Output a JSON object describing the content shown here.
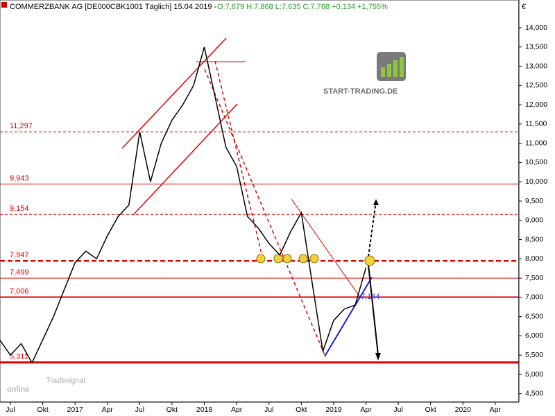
{
  "chart_data": {
    "type": "line",
    "title": "COMMERZBANK AG [DE000CBK1001  Täglich] 15.04.2019 -",
    "ohlc": "O:7,679 H:7,868 L:7,635 C:7,768 +0,134 +1,755%",
    "currency": "€",
    "logo": "START-TRADING.DE",
    "watermark_small": "Tradesignal",
    "watermark": "online",
    "annotation": "7,144",
    "categories": [
      null,
      "Jul",
      null,
      null,
      "Okt",
      null,
      null,
      "2017",
      null,
      null,
      "Apr",
      null,
      null,
      "Jul",
      null,
      null,
      "Okt",
      null,
      null,
      "2018",
      null,
      null,
      "Apr",
      null,
      null,
      "Jul",
      null,
      null,
      "Okt",
      null,
      null,
      "2019",
      null,
      null,
      "Apr",
      null,
      null,
      "Jul",
      null,
      null,
      "Okt",
      null,
      null,
      "2020",
      null,
      null,
      "Apr",
      null
    ],
    "series": [
      {
        "name": "COMMERZBANK AG",
        "color": "#000000",
        "values": [
          5.9,
          5.5,
          5.8,
          5.3,
          5.9,
          6.5,
          7.2,
          7.9,
          8.2,
          8.0,
          8.6,
          9.1,
          9.4,
          11.3,
          10.0,
          11.0,
          11.6,
          12.0,
          12.5,
          13.5,
          12.2,
          10.9,
          10.4,
          9.1,
          8.8,
          8.4,
          8.1,
          8.7,
          9.2,
          7.4,
          5.6,
          6.4,
          6.7,
          6.8,
          7.77,
          null,
          null,
          null,
          null,
          null,
          null,
          null,
          null,
          null,
          null,
          null,
          null,
          null
        ]
      }
    ],
    "levels": [
      {
        "value": 11.297,
        "label": "11,297"
      },
      {
        "value": 9.943,
        "label": "9,943"
      },
      {
        "value": 9.154,
        "label": "9,154"
      },
      {
        "value": 7.947,
        "label": "7,947"
      },
      {
        "value": 7.499,
        "label": "7,499"
      },
      {
        "value": 7.006,
        "label": "7,006"
      },
      {
        "value": 5.311,
        "label": "5,311"
      }
    ],
    "level_color": "#e00000",
    "ylim": [
      4.28,
      14.72
    ],
    "yticks": [
      {
        "value": 4.5,
        "label": "4,500"
      },
      {
        "value": 5,
        "label": "5,000"
      },
      {
        "value": 5.5,
        "label": "5,500"
      },
      {
        "value": 6,
        "label": "6,000"
      },
      {
        "value": 6.5,
        "label": "6,500"
      },
      {
        "value": 7,
        "label": "7,000"
      },
      {
        "value": 7.5,
        "label": "7,500"
      },
      {
        "value": 8,
        "label": "8,000"
      },
      {
        "value": 8.5,
        "label": "8,500"
      },
      {
        "value": 9,
        "label": "9,000"
      },
      {
        "value": 9.5,
        "label": "9,500"
      },
      {
        "value": 10,
        "label": "10,000"
      },
      {
        "value": 10.5,
        "label": "10,500"
      },
      {
        "value": 11,
        "label": "11,000"
      },
      {
        "value": 11.5,
        "label": "11,500"
      },
      {
        "value": 12,
        "label": "12,000"
      },
      {
        "value": 12.5,
        "label": "12,500"
      },
      {
        "value": 13,
        "label": "13,000"
      },
      {
        "value": 13.5,
        "label": "13,500"
      },
      {
        "value": 14,
        "label": "14,000"
      }
    ]
  }
}
